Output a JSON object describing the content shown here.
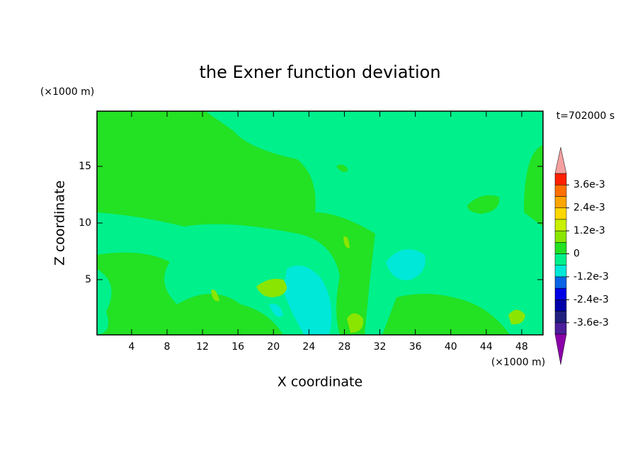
{
  "chart_data": {
    "type": "contour",
    "title": "the Exner function deviation",
    "xlabel": "X coordinate",
    "ylabel": "Z coordinate",
    "x_unit": "(×1000 m)",
    "y_unit": "(×1000 m)",
    "annotation": "t=702000 s",
    "xlim": [
      0.1,
      50.4
    ],
    "xticks": [
      4,
      8,
      12,
      16,
      20,
      24,
      28,
      32,
      36,
      40,
      44,
      48
    ],
    "ylim": [
      0.125,
      19.875
    ],
    "yticks": [
      5,
      10,
      15
    ],
    "colorbar": {
      "levels": [
        -0.0042,
        -0.0036,
        -0.003,
        -0.0024,
        -0.0018,
        -0.0012,
        -0.0006,
        0,
        0.0006,
        0.0012,
        0.0018,
        0.0024,
        0.003,
        0.0036,
        0.0042
      ],
      "colors": [
        "#4b1f9a",
        "#20207f",
        "#0000a8",
        "#0000e6",
        "#0a64e6",
        "#00e8d8",
        "#00f08c",
        "#23e123",
        "#8ae600",
        "#c8f000",
        "#ffd700",
        "#ffa500",
        "#ff7000",
        "#ff2000"
      ],
      "extend_colors": [
        "#8b00a8",
        "#f5a0a0"
      ],
      "ticks": [
        {
          "value": -0.0036,
          "label": "-3.6e-3"
        },
        {
          "value": -0.0024,
          "label": "-2.4e-3"
        },
        {
          "value": -0.0012,
          "label": "-1.2e-3"
        },
        0,
        {
          "value": 0.0012,
          "label": "1.2e-3"
        },
        {
          "value": 0.0024,
          "label": "2.4e-3"
        },
        {
          "value": 0.0036,
          "label": "3.6e-3"
        }
      ]
    }
  }
}
